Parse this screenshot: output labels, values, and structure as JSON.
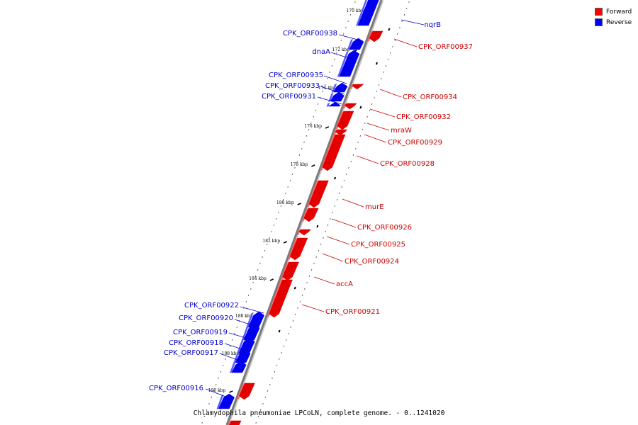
{
  "caption": "Chlamydophila pneumoniae LPCoLN, complete genome. - 0..1241020",
  "legend": [
    {
      "label": "Forward",
      "color": "#ff0000"
    },
    {
      "label": "Reverse",
      "color": "#0000ff"
    }
  ],
  "colors": {
    "forward": "#e50000",
    "reverse": "#0000ee",
    "forward_text": "#cc0000",
    "reverse_text": "#0000cc",
    "backbone": "#7a7a7a"
  },
  "ticks": [
    "170 kbp",
    "172 kbp",
    "174 kbp",
    "176 kbp",
    "178 kbp",
    "180 kbp",
    "182 kbp",
    "184 kbp",
    "186 kbp",
    "188 kbp",
    "190 kbp"
  ],
  "genes": [
    {
      "label": "nqrB",
      "strand": "reverse"
    },
    {
      "label": "CPK_ORF00938",
      "strand": "reverse"
    },
    {
      "label": "CPK_ORF00937",
      "strand": "forward"
    },
    {
      "label": "dnaA",
      "strand": "reverse"
    },
    {
      "label": "CPK_ORF00935",
      "strand": "reverse"
    },
    {
      "label": "CPK_ORF00933",
      "strand": "reverse"
    },
    {
      "label": "CPK_ORF00931",
      "strand": "reverse"
    },
    {
      "label": "CPK_ORF00934",
      "strand": "forward"
    },
    {
      "label": "CPK_ORF00932",
      "strand": "forward"
    },
    {
      "label": "mraW",
      "strand": "forward"
    },
    {
      "label": "CPK_ORF00929",
      "strand": "forward"
    },
    {
      "label": "CPK_ORF00928",
      "strand": "forward"
    },
    {
      "label": "murE",
      "strand": "forward"
    },
    {
      "label": "CPK_ORF00926",
      "strand": "forward"
    },
    {
      "label": "CPK_ORF00925",
      "strand": "forward"
    },
    {
      "label": "CPK_ORF00924",
      "strand": "forward"
    },
    {
      "label": "accA",
      "strand": "forward"
    },
    {
      "label": "CPK_ORF00921",
      "strand": "forward"
    },
    {
      "label": "CPK_ORF00922",
      "strand": "reverse"
    },
    {
      "label": "CPK_ORF00920",
      "strand": "reverse"
    },
    {
      "label": "CPK_ORF00919",
      "strand": "reverse"
    },
    {
      "label": "CPK_ORF00918",
      "strand": "reverse"
    },
    {
      "label": "CPK_ORF00917",
      "strand": "reverse"
    },
    {
      "label": "CPK_ORF00916",
      "strand": "reverse"
    }
  ]
}
